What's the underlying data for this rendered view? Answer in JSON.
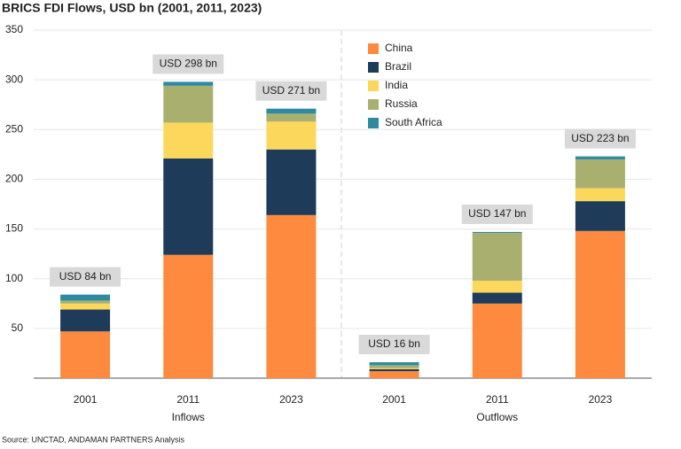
{
  "chart_data": {
    "type": "stacked_bar",
    "title": "BRICS FDI Flows, USD bn (2001, 2011, 2023)",
    "source": "Source: UNCTAD, ANDAMAN PARTNERS Analysis",
    "categories": [
      "2001",
      "2011",
      "2023",
      "2001",
      "2011",
      "2023"
    ],
    "group_labels": [
      "Inflows",
      "Outflows"
    ],
    "series": [
      {
        "name": "China",
        "color": "#fd8a3e",
        "values": [
          47,
          124,
          164,
          7,
          75,
          148
        ]
      },
      {
        "name": "Brazil",
        "color": "#1e3b5a",
        "values": [
          22,
          97,
          66,
          2,
          11,
          30
        ]
      },
      {
        "name": "India",
        "color": "#fbd75b",
        "values": [
          6,
          36,
          28,
          1,
          12,
          13
        ]
      },
      {
        "name": "Russia",
        "color": "#a9b06f",
        "values": [
          3,
          37,
          8,
          3,
          48,
          29
        ]
      },
      {
        "name": "South Africa",
        "color": "#2e8aa0",
        "values": [
          6,
          4,
          5,
          3,
          1,
          3
        ]
      }
    ],
    "totals": {
      "values": [
        84,
        298,
        271,
        16,
        147,
        223
      ],
      "value_labels": [
        "USD 84 bn",
        "USD 298 bn",
        "USD 271 bn",
        "USD 16 bn",
        "USD 147 bn",
        "USD 223 bn"
      ]
    },
    "ylim": [
      0,
      350
    ],
    "yticks": [
      50,
      100,
      150,
      200,
      250,
      300,
      350
    ],
    "grid": true,
    "legend": "top-center"
  }
}
